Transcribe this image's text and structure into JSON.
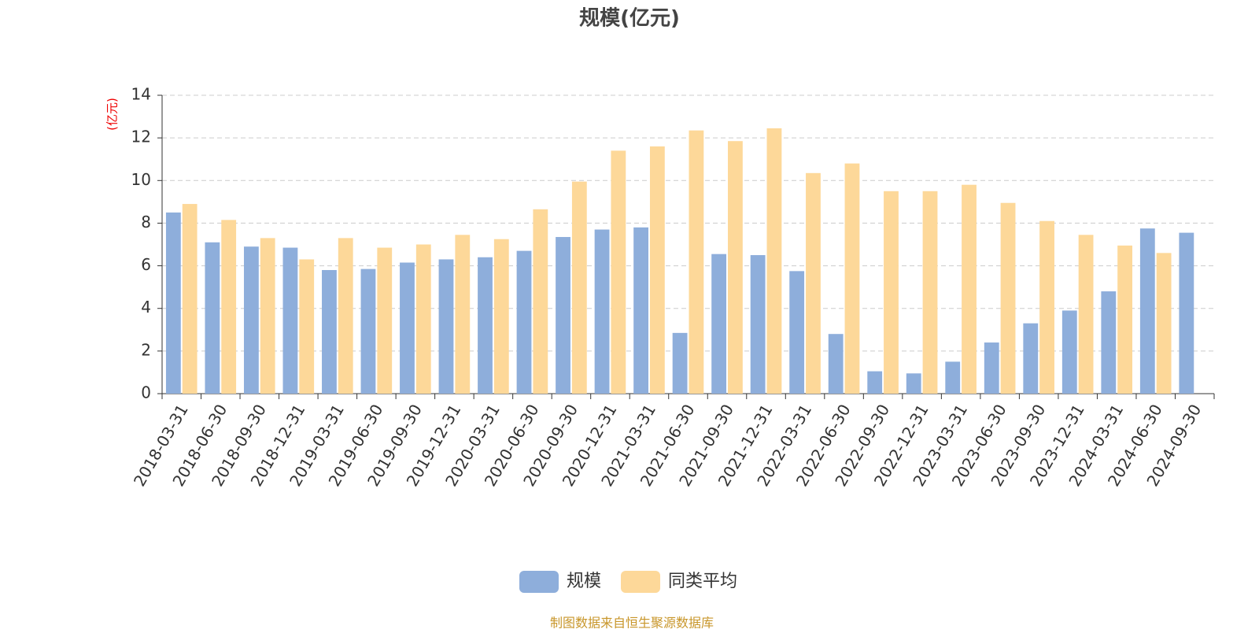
{
  "chart_data": {
    "type": "bar",
    "title": "规模(亿元)",
    "y_label": "(亿元)",
    "categories": [
      "2018-03-31",
      "2018-06-30",
      "2018-09-30",
      "2018-12-31",
      "2019-03-31",
      "2019-06-30",
      "2019-09-30",
      "2019-12-31",
      "2020-03-31",
      "2020-06-30",
      "2020-09-30",
      "2020-12-31",
      "2021-03-31",
      "2021-06-30",
      "2021-09-30",
      "2021-12-31",
      "2022-03-31",
      "2022-06-30",
      "2022-09-30",
      "2022-12-31",
      "2023-03-31",
      "2023-06-30",
      "2023-09-30",
      "2023-12-31",
      "2024-03-31",
      "2024-06-30",
      "2024-09-30"
    ],
    "series": [
      {
        "name": "规模",
        "color": "#8eaedb",
        "values": [
          8.5,
          7.1,
          6.9,
          6.85,
          5.8,
          5.85,
          6.15,
          6.3,
          6.4,
          6.7,
          7.35,
          7.7,
          7.8,
          2.85,
          6.55,
          6.5,
          5.75,
          2.8,
          1.05,
          0.95,
          1.5,
          2.4,
          3.3,
          3.9,
          4.8,
          7.75,
          7.55
        ]
      },
      {
        "name": "同类平均",
        "color": "#fdd899",
        "values": [
          8.9,
          8.15,
          7.3,
          6.3,
          7.3,
          6.85,
          7.0,
          7.45,
          7.25,
          8.65,
          9.95,
          11.4,
          11.6,
          12.35,
          11.85,
          12.45,
          10.35,
          10.8,
          9.5,
          9.5,
          9.8,
          8.95,
          8.1,
          7.45,
          6.95,
          6.6,
          null
        ]
      }
    ],
    "ylim": [
      0,
      14
    ],
    "yticks": [
      0,
      2,
      4,
      6,
      8,
      10,
      12,
      14
    ],
    "grid": true,
    "source": "制图数据来自恒生聚源数据库"
  }
}
